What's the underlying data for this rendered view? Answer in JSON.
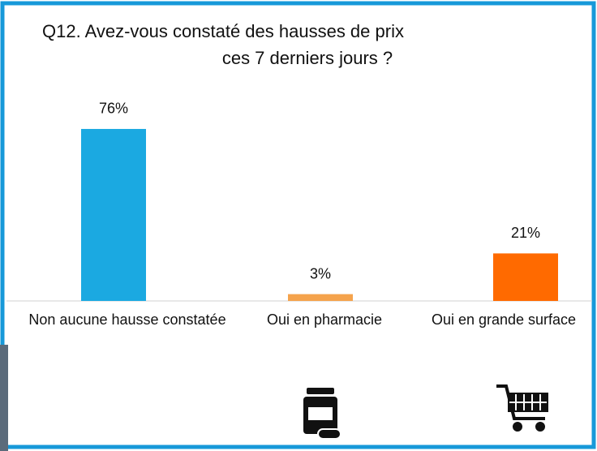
{
  "chart_data": {
    "type": "bar",
    "title": [
      "Q12.  Avez-vous constaté des hausses de prix",
      "ces 7 derniers jours ?"
    ],
    "categories": [
      "Non aucune hausse constatée",
      "Oui en pharmacie",
      "Oui en grande surface"
    ],
    "values": [
      76,
      3,
      21
    ],
    "value_labels": [
      "76%",
      "3%",
      "21%"
    ],
    "colors": [
      "#1ba9e1",
      "#f5a34c",
      "#ff6a00"
    ]
  }
}
